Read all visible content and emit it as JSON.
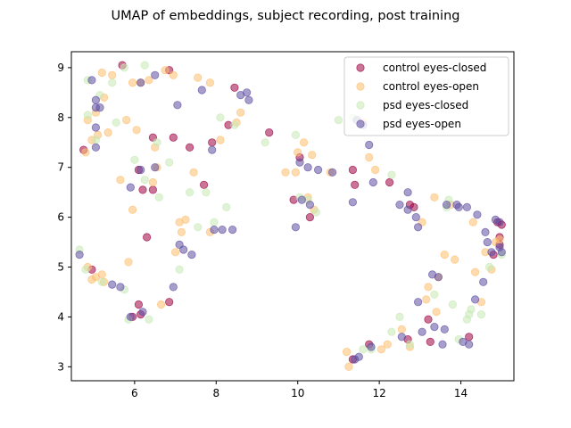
{
  "chart_data": {
    "type": "scatter",
    "title": "UMAP of embeddings, subject recording, post training",
    "xlabel": "",
    "ylabel": "",
    "xlim": [
      4.45,
      15.3
    ],
    "ylim": [
      2.72,
      9.32
    ],
    "xticks": [
      6,
      8,
      10,
      12,
      14
    ],
    "yticks": [
      3,
      4,
      5,
      6,
      7,
      8,
      9
    ],
    "grid": false,
    "legend_position": "top-right",
    "series": [
      {
        "name": "control eyes-closed",
        "color": "#9e0142",
        "points": [
          [
            5.7,
            9.05
          ],
          [
            4.75,
            7.35
          ],
          [
            4.95,
            4.95
          ],
          [
            5.95,
            4.0
          ],
          [
            6.1,
            4.25
          ],
          [
            6.15,
            4.05
          ],
          [
            6.2,
            6.55
          ],
          [
            6.45,
            6.55
          ],
          [
            6.1,
            6.95
          ],
          [
            6.3,
            5.6
          ],
          [
            6.45,
            7.6
          ],
          [
            6.85,
            4.3
          ],
          [
            6.95,
            7.6
          ],
          [
            7.35,
            7.4
          ],
          [
            7.7,
            6.65
          ],
          [
            7.9,
            7.5
          ],
          [
            6.85,
            8.95
          ],
          [
            8.45,
            8.6
          ],
          [
            8.3,
            7.85
          ],
          [
            9.3,
            7.7
          ],
          [
            10.05,
            7.2
          ],
          [
            9.9,
            6.35
          ],
          [
            10.3,
            6.0
          ],
          [
            11.35,
            6.95
          ],
          [
            11.4,
            6.65
          ],
          [
            11.75,
            3.45
          ],
          [
            11.35,
            3.15
          ],
          [
            12.25,
            6.7
          ],
          [
            12.75,
            6.25
          ],
          [
            12.85,
            6.2
          ],
          [
            12.7,
            3.55
          ],
          [
            13.2,
            3.95
          ],
          [
            13.25,
            3.5
          ],
          [
            14.2,
            3.6
          ],
          [
            14.8,
            5.25
          ],
          [
            14.9,
            5.9
          ],
          [
            14.95,
            5.6
          ],
          [
            14.95,
            5.45
          ],
          [
            15.0,
            5.85
          ]
        ]
      },
      {
        "name": "control eyes-open",
        "color": "#fdbf6f",
        "points": [
          [
            4.8,
            7.3
          ],
          [
            4.85,
            7.95
          ],
          [
            4.95,
            7.55
          ],
          [
            5.1,
            7.65
          ],
          [
            5.2,
            8.9
          ],
          [
            5.25,
            8.4
          ],
          [
            5.35,
            7.7
          ],
          [
            5.45,
            8.85
          ],
          [
            5.8,
            7.95
          ],
          [
            5.85,
            5.1
          ],
          [
            5.95,
            6.15
          ],
          [
            5.65,
            6.75
          ],
          [
            5.95,
            8.7
          ],
          [
            6.15,
            8.7
          ],
          [
            6.05,
            7.75
          ],
          [
            6.35,
            8.75
          ],
          [
            6.5,
            7.4
          ],
          [
            6.55,
            7.0
          ],
          [
            6.45,
            6.7
          ],
          [
            6.65,
            4.25
          ],
          [
            6.75,
            8.95
          ],
          [
            7.0,
            5.3
          ],
          [
            7.1,
            5.9
          ],
          [
            7.15,
            5.7
          ],
          [
            7.25,
            5.95
          ],
          [
            7.45,
            6.9
          ],
          [
            7.55,
            8.8
          ],
          [
            7.85,
            5.7
          ],
          [
            7.85,
            8.7
          ],
          [
            8.1,
            7.55
          ],
          [
            8.5,
            7.9
          ],
          [
            8.6,
            8.1
          ],
          [
            9.7,
            6.9
          ],
          [
            9.95,
            6.9
          ],
          [
            10.0,
            7.3
          ],
          [
            10.15,
            7.5
          ],
          [
            10.35,
            7.25
          ],
          [
            10.25,
            6.4
          ],
          [
            10.4,
            6.15
          ],
          [
            10.8,
            6.9
          ],
          [
            11.2,
            3.3
          ],
          [
            11.25,
            3.0
          ],
          [
            11.6,
            7.9
          ],
          [
            11.75,
            7.2
          ],
          [
            11.9,
            6.95
          ],
          [
            12.05,
            3.35
          ],
          [
            12.2,
            3.45
          ],
          [
            12.55,
            3.75
          ],
          [
            12.75,
            3.4
          ],
          [
            13.05,
            5.9
          ],
          [
            13.15,
            4.35
          ],
          [
            13.2,
            4.6
          ],
          [
            13.35,
            6.4
          ],
          [
            13.4,
            4.1
          ],
          [
            13.45,
            4.8
          ],
          [
            13.6,
            5.25
          ],
          [
            13.75,
            6.25
          ],
          [
            13.85,
            5.15
          ],
          [
            14.3,
            5.9
          ],
          [
            14.35,
            4.9
          ],
          [
            14.5,
            4.3
          ],
          [
            14.6,
            5.3
          ],
          [
            14.75,
            4.95
          ],
          [
            14.85,
            5.5
          ],
          [
            14.95,
            5.55
          ],
          [
            4.85,
            5.0
          ],
          [
            5.05,
            4.8
          ],
          [
            5.2,
            4.85
          ],
          [
            5.25,
            4.7
          ],
          [
            4.95,
            4.75
          ],
          [
            5.05,
            8.1
          ],
          [
            6.95,
            8.85
          ]
        ]
      },
      {
        "name": "psd eyes-closed",
        "color": "#c7e9b4",
        "points": [
          [
            4.65,
            5.35
          ],
          [
            4.85,
            8.75
          ],
          [
            4.85,
            8.05
          ],
          [
            5.05,
            7.55
          ],
          [
            5.15,
            8.45
          ],
          [
            5.45,
            8.7
          ],
          [
            5.55,
            7.9
          ],
          [
            5.75,
            9.0
          ],
          [
            5.75,
            4.55
          ],
          [
            5.85,
            3.95
          ],
          [
            6.0,
            7.15
          ],
          [
            6.25,
            6.75
          ],
          [
            6.25,
            9.05
          ],
          [
            6.55,
            7.5
          ],
          [
            6.6,
            6.4
          ],
          [
            6.85,
            7.1
          ],
          [
            7.1,
            4.95
          ],
          [
            7.35,
            6.5
          ],
          [
            7.55,
            5.8
          ],
          [
            7.75,
            6.5
          ],
          [
            7.95,
            5.9
          ],
          [
            8.1,
            8.0
          ],
          [
            8.25,
            6.2
          ],
          [
            8.45,
            7.85
          ],
          [
            9.2,
            7.5
          ],
          [
            9.95,
            7.65
          ],
          [
            10.05,
            6.4
          ],
          [
            10.25,
            6.35
          ],
          [
            10.45,
            6.1
          ],
          [
            11.0,
            7.95
          ],
          [
            11.35,
            8.0
          ],
          [
            11.6,
            3.35
          ],
          [
            11.8,
            3.35
          ],
          [
            12.3,
            3.7
          ],
          [
            12.3,
            6.85
          ],
          [
            12.5,
            4.0
          ],
          [
            12.75,
            3.45
          ],
          [
            13.35,
            4.45
          ],
          [
            13.65,
            6.2
          ],
          [
            13.7,
            6.35
          ],
          [
            13.8,
            4.25
          ],
          [
            13.95,
            3.55
          ],
          [
            14.15,
            3.95
          ],
          [
            14.2,
            4.05
          ],
          [
            14.25,
            4.15
          ],
          [
            14.5,
            4.05
          ],
          [
            14.7,
            5.0
          ],
          [
            15.0,
            5.25
          ],
          [
            5.2,
            4.7
          ],
          [
            4.8,
            4.95
          ],
          [
            6.35,
            3.95
          ]
        ]
      },
      {
        "name": "psd eyes-open",
        "color": "#5e4fa2",
        "points": [
          [
            4.65,
            5.25
          ],
          [
            4.95,
            8.75
          ],
          [
            5.05,
            8.35
          ],
          [
            5.05,
            8.2
          ],
          [
            5.15,
            8.2
          ],
          [
            5.05,
            7.8
          ],
          [
            5.05,
            7.4
          ],
          [
            5.45,
            4.65
          ],
          [
            5.65,
            4.6
          ],
          [
            5.9,
            4.0
          ],
          [
            5.9,
            6.6
          ],
          [
            6.15,
            6.95
          ],
          [
            6.15,
            8.7
          ],
          [
            6.2,
            4.1
          ],
          [
            6.5,
            7.0
          ],
          [
            6.5,
            8.85
          ],
          [
            6.95,
            4.6
          ],
          [
            7.05,
            8.25
          ],
          [
            7.1,
            5.45
          ],
          [
            7.2,
            5.35
          ],
          [
            7.4,
            5.25
          ],
          [
            7.65,
            8.55
          ],
          [
            7.9,
            7.35
          ],
          [
            7.95,
            5.75
          ],
          [
            8.15,
            5.75
          ],
          [
            8.4,
            5.75
          ],
          [
            8.6,
            8.45
          ],
          [
            8.75,
            8.5
          ],
          [
            8.8,
            8.35
          ],
          [
            9.95,
            5.8
          ],
          [
            10.05,
            7.1
          ],
          [
            10.1,
            6.35
          ],
          [
            10.25,
            7.0
          ],
          [
            10.3,
            6.25
          ],
          [
            10.5,
            6.95
          ],
          [
            10.85,
            6.9
          ],
          [
            11.35,
            6.3
          ],
          [
            11.45,
            7.95
          ],
          [
            11.5,
            3.2
          ],
          [
            11.6,
            7.85
          ],
          [
            11.75,
            7.45
          ],
          [
            11.8,
            3.4
          ],
          [
            11.85,
            6.7
          ],
          [
            12.55,
            3.6
          ],
          [
            12.7,
            6.5
          ],
          [
            12.9,
            6.0
          ],
          [
            12.95,
            5.8
          ],
          [
            12.95,
            4.3
          ],
          [
            13.05,
            3.7
          ],
          [
            13.35,
            3.8
          ],
          [
            13.45,
            4.8
          ],
          [
            13.55,
            3.45
          ],
          [
            13.6,
            3.75
          ],
          [
            13.9,
            6.25
          ],
          [
            13.95,
            6.2
          ],
          [
            14.05,
            3.5
          ],
          [
            14.15,
            6.2
          ],
          [
            14.2,
            3.45
          ],
          [
            14.35,
            4.35
          ],
          [
            14.4,
            6.05
          ],
          [
            14.55,
            4.7
          ],
          [
            14.6,
            5.7
          ],
          [
            14.65,
            5.5
          ],
          [
            14.75,
            5.3
          ],
          [
            14.85,
            5.95
          ],
          [
            14.95,
            5.9
          ],
          [
            14.95,
            5.4
          ],
          [
            15.0,
            5.3
          ],
          [
            13.3,
            4.85
          ],
          [
            12.5,
            6.25
          ],
          [
            11.4,
            3.15
          ],
          [
            12.7,
            6.15
          ],
          [
            13.65,
            6.25
          ]
        ]
      }
    ]
  }
}
